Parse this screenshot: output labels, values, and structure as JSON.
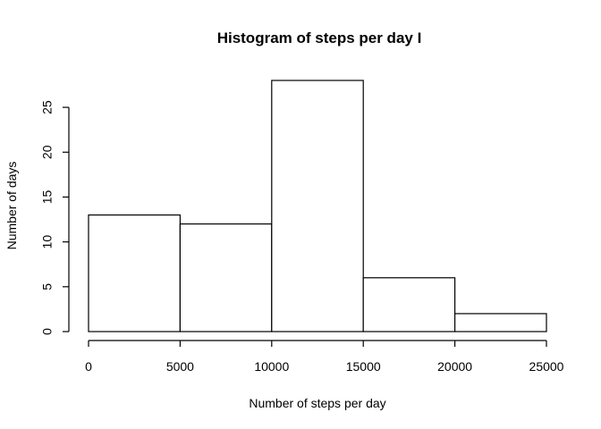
{
  "chart_data": {
    "type": "bar",
    "title": "Histogram of steps per day I",
    "xlabel": "Number of steps per day",
    "ylabel": "Number of days",
    "bins": [
      {
        "from": 0,
        "to": 5000,
        "count": 13
      },
      {
        "from": 5000,
        "to": 10000,
        "count": 12
      },
      {
        "from": 10000,
        "to": 15000,
        "count": 28
      },
      {
        "from": 15000,
        "to": 20000,
        "count": 6
      },
      {
        "from": 20000,
        "to": 25000,
        "count": 2
      }
    ],
    "xlim": [
      0,
      25000
    ],
    "ylim": [
      0,
      28
    ],
    "xticks": [
      0,
      5000,
      10000,
      15000,
      20000,
      25000
    ],
    "yticks": [
      0,
      5,
      10,
      15,
      20,
      25
    ],
    "grid": false,
    "legend": "none"
  }
}
